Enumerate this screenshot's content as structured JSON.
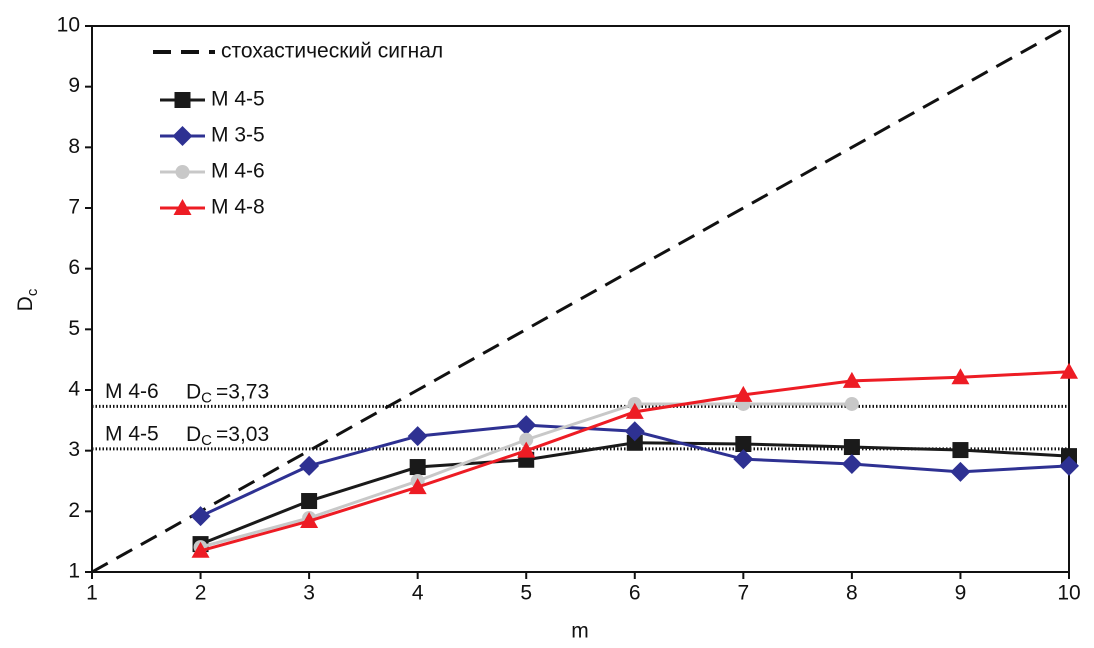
{
  "chart_data": {
    "type": "line",
    "xlabel": "m",
    "ylabel": "D",
    "ylabel_sub": "c",
    "x": [
      1,
      2,
      3,
      4,
      5,
      6,
      7,
      8,
      9,
      10
    ],
    "xlim": [
      1,
      10
    ],
    "ylim": [
      1,
      10
    ],
    "xticks": [
      1,
      2,
      3,
      4,
      5,
      6,
      7,
      8,
      9,
      10
    ],
    "yticks": [
      1,
      2,
      3,
      4,
      5,
      6,
      7,
      8,
      9,
      10
    ],
    "legend": "top-left",
    "series": [
      {
        "name": "стохастический сигнал",
        "color": "#111111",
        "dash": true,
        "marker": "none",
        "values": [
          1,
          2,
          3,
          4,
          5,
          6,
          7,
          8,
          9,
          10
        ]
      },
      {
        "name": "M 4-5",
        "color": "#1a1a1a",
        "marker": "square",
        "values": [
          null,
          1.46,
          2.17,
          2.73,
          2.85,
          3.13,
          3.11,
          3.06,
          3.01,
          2.91
        ]
      },
      {
        "name": "M 3-5",
        "color": "#2e3192",
        "marker": "diamond",
        "values": [
          null,
          1.92,
          2.75,
          3.24,
          3.42,
          3.32,
          2.86,
          2.78,
          2.65,
          2.75
        ]
      },
      {
        "name": "M 4-6",
        "color": "#c8c8c8",
        "marker": "circle",
        "values": [
          null,
          1.41,
          1.89,
          2.5,
          3.18,
          3.77,
          3.77,
          3.77,
          null,
          null
        ]
      },
      {
        "name": "M 4-8",
        "color": "#ed1c24",
        "marker": "triangle",
        "values": [
          null,
          1.35,
          1.84,
          2.4,
          3.0,
          3.64,
          3.92,
          4.15,
          4.21,
          4.3
        ]
      }
    ],
    "reference_lines": [
      {
        "series_label": "M 4-6",
        "symbol": "D",
        "symbol_sub": "C",
        "value": 3.73,
        "value_label": "=3,73"
      },
      {
        "series_label": "M 4-5",
        "symbol": "D",
        "symbol_sub": "C",
        "value": 3.03,
        "value_label": "=3,03"
      }
    ]
  }
}
